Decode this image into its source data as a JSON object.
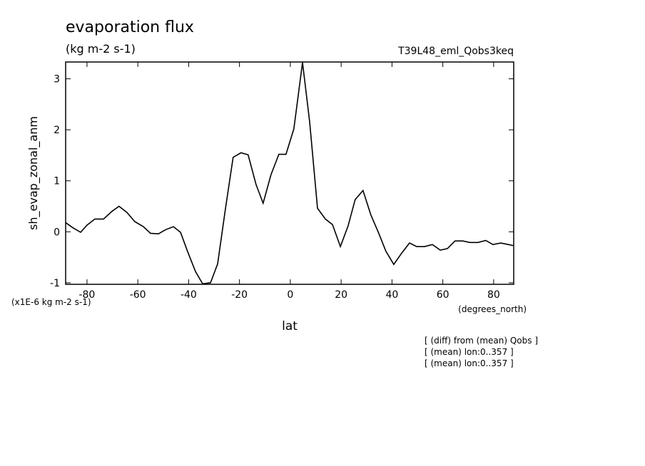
{
  "chart_data": {
    "type": "line",
    "title": "evaporation flux",
    "subtitle": "(kg m-2 s-1)",
    "run_label": "T39L48_eml_Qobs3keq",
    "y_label": "sh_evap_zonal_anm",
    "y_units": "(x1E-6 kg m-2 s-1)",
    "x_label": "lat",
    "x_units": "(degrees_north)",
    "notes": [
      "[ (diff) from (mean) Qobs ]",
      "[ (mean) lon:0..357 ]",
      "[ (mean) lon:0..357 ]"
    ],
    "x": [
      -88.4,
      -85.6,
      -82.5,
      -80.0,
      -76.9,
      -73.5,
      -70.2,
      -67.4,
      -64.3,
      -61.2,
      -57.8,
      -55.0,
      -51.9,
      -49.1,
      -46.0,
      -43.2,
      -40.4,
      -37.3,
      -34.5,
      -31.4,
      -28.6,
      -25.5,
      -22.5,
      -19.4,
      -16.6,
      -13.5,
      -10.7,
      -7.6,
      -4.5,
      -1.7,
      1.4,
      4.8,
      7.6,
      10.7,
      13.8,
      16.6,
      19.7,
      22.7,
      25.5,
      28.6,
      31.7,
      34.8,
      37.6,
      40.7,
      43.8,
      46.9,
      49.7,
      52.8,
      55.9,
      59.0,
      61.8,
      64.8,
      67.9,
      70.7,
      73.8,
      76.9,
      79.7,
      82.8,
      85.8,
      87.7
    ],
    "series": [
      {
        "name": "sh_evap_zonal_anm",
        "color": "#000000",
        "values": [
          0.18,
          0.08,
          -0.01,
          0.13,
          0.25,
          0.25,
          0.4,
          0.5,
          0.38,
          0.2,
          0.1,
          -0.03,
          -0.04,
          0.04,
          0.1,
          -0.01,
          -0.39,
          -0.78,
          -1.02,
          -1.0,
          -0.63,
          0.46,
          1.46,
          1.55,
          1.51,
          0.93,
          0.56,
          1.12,
          1.52,
          1.52,
          2.02,
          3.32,
          2.16,
          0.46,
          0.25,
          0.14,
          -0.29,
          0.11,
          0.63,
          0.81,
          0.33,
          -0.03,
          -0.38,
          -0.64,
          -0.42,
          -0.22,
          -0.29,
          -0.29,
          -0.25,
          -0.36,
          -0.33,
          -0.18,
          -0.18,
          -0.21,
          -0.21,
          -0.17,
          -0.25,
          -0.22,
          -0.25,
          -0.27
        ]
      }
    ],
    "xlim": [
      -88.4,
      87.9
    ],
    "ylim": [
      -1.03,
      3.33
    ],
    "xticks": [
      -80,
      -60,
      -40,
      -20,
      0,
      20,
      40,
      60,
      80
    ],
    "yticks": [
      -1,
      0,
      1,
      2,
      3
    ]
  }
}
